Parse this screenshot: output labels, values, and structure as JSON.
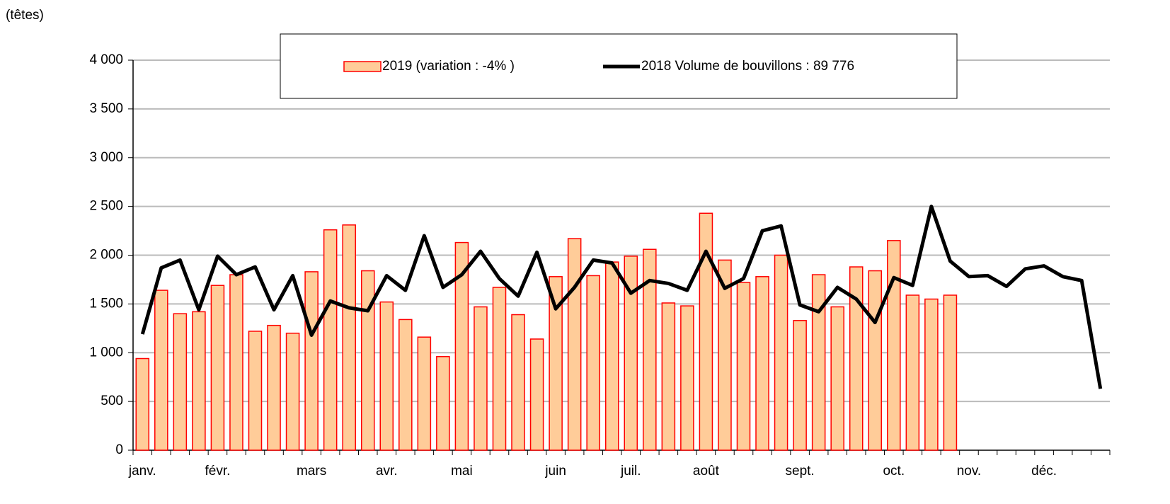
{
  "chart_data": {
    "type": "bar-line",
    "unit_label": "(têtes)",
    "categories": [
      "janv.",
      null,
      null,
      null,
      "févr.",
      null,
      null,
      null,
      null,
      "mars",
      null,
      null,
      null,
      "avr.",
      null,
      null,
      null,
      "mai",
      null,
      null,
      null,
      null,
      "juin",
      null,
      null,
      null,
      "juil.",
      null,
      null,
      null,
      "août",
      null,
      null,
      null,
      null,
      "sept.",
      null,
      null,
      null,
      null,
      "oct.",
      null,
      null,
      null,
      "nov.",
      null,
      null,
      null,
      "déc.",
      null,
      null,
      null
    ],
    "series": [
      {
        "name": "2019 (variation : -4% )",
        "kind": "bar",
        "color": "#ffcc99",
        "edge_color": "#ff0000",
        "values": [
          940,
          1640,
          1400,
          1420,
          1690,
          1800,
          1220,
          1280,
          1200,
          1830,
          2260,
          2310,
          1840,
          1520,
          1340,
          1160,
          960,
          2130,
          1470,
          1670,
          1390,
          1140,
          1780,
          2170,
          1790,
          1930,
          1990,
          2060,
          1510,
          1480,
          2430,
          1950,
          1720,
          1780,
          2000,
          1330,
          1800,
          1470,
          1880,
          1840,
          2150,
          1590,
          1550,
          1590,
          null,
          null,
          null,
          null,
          null,
          null,
          null,
          null
        ]
      },
      {
        "name": "2018 Volume de bouvillons : 89 776",
        "kind": "line",
        "color": "#000000",
        "values": [
          1190,
          1870,
          1950,
          1440,
          1990,
          1800,
          1880,
          1440,
          1790,
          1180,
          1530,
          1460,
          1430,
          1790,
          1640,
          2200,
          1670,
          1800,
          2040,
          1760,
          1580,
          2030,
          1450,
          1670,
          1950,
          1920,
          1610,
          1740,
          1710,
          1640,
          2040,
          1660,
          1760,
          2250,
          2300,
          1490,
          1420,
          1670,
          1550,
          1310,
          1770,
          1690,
          2500,
          1940,
          1780,
          1790,
          1680,
          1860,
          1890,
          1780,
          1740,
          630
        ]
      }
    ],
    "ylim": [
      0,
      4000
    ],
    "yticks": [
      0,
      500,
      {
        "value": 1000,
        "label": "1 000"
      },
      {
        "value": 1500,
        "label": "1 500"
      },
      {
        "value": 2000,
        "label": "2 000"
      },
      {
        "value": 2500,
        "label": "2 500"
      },
      {
        "value": 3000,
        "label": "3 000"
      },
      {
        "value": 3500,
        "label": "3 500"
      },
      {
        "value": 4000,
        "label": "4 000"
      }
    ],
    "grid": true,
    "legend": "top"
  }
}
